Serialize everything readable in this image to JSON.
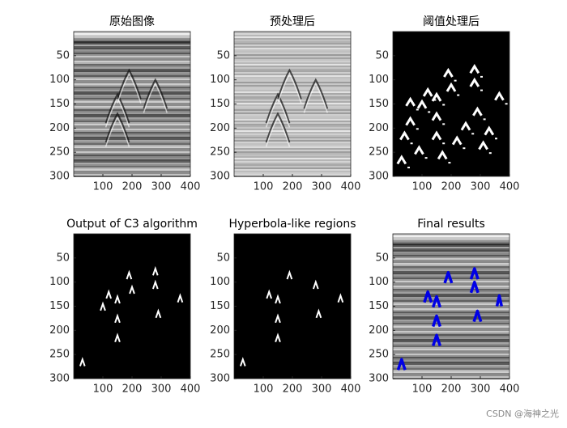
{
  "chart_data": [
    {
      "type": "image",
      "title": "原始图像",
      "xlim": [
        0,
        400
      ],
      "ylim": [
        0,
        300
      ],
      "xticks": [
        100,
        200,
        300,
        400
      ],
      "yticks": [
        50,
        100,
        150,
        200,
        250,
        300
      ]
    },
    {
      "type": "image",
      "title": "预处理后",
      "xlim": [
        0,
        400
      ],
      "ylim": [
        0,
        300
      ],
      "xticks": [
        100,
        200,
        300,
        400
      ],
      "yticks": [
        50,
        100,
        150,
        200,
        250,
        300
      ]
    },
    {
      "type": "image",
      "title": "阈值处理后",
      "xlim": [
        0,
        400
      ],
      "ylim": [
        0,
        300
      ],
      "xticks": [
        100,
        200,
        300,
        400
      ],
      "yticks": [
        50,
        100,
        150,
        200,
        250,
        300
      ]
    },
    {
      "type": "image",
      "title": "Output of C3 algorithm",
      "xlim": [
        0,
        400
      ],
      "ylim": [
        0,
        300
      ],
      "xticks": [
        100,
        200,
        300,
        400
      ],
      "yticks": [
        50,
        100,
        150,
        200,
        250,
        300
      ]
    },
    {
      "type": "image",
      "title": "Hyperbola-like regions",
      "xlim": [
        0,
        400
      ],
      "ylim": [
        0,
        300
      ],
      "xticks": [
        100,
        200,
        300,
        400
      ],
      "yticks": [
        50,
        100,
        150,
        200,
        250,
        300
      ]
    },
    {
      "type": "image",
      "title": "Final results",
      "xlim": [
        0,
        400
      ],
      "ylim": [
        0,
        300
      ],
      "xticks": [
        100,
        200,
        300,
        400
      ],
      "yticks": [
        50,
        100,
        150,
        200,
        250,
        300
      ]
    }
  ],
  "watermark": "CSDN @海神之光"
}
